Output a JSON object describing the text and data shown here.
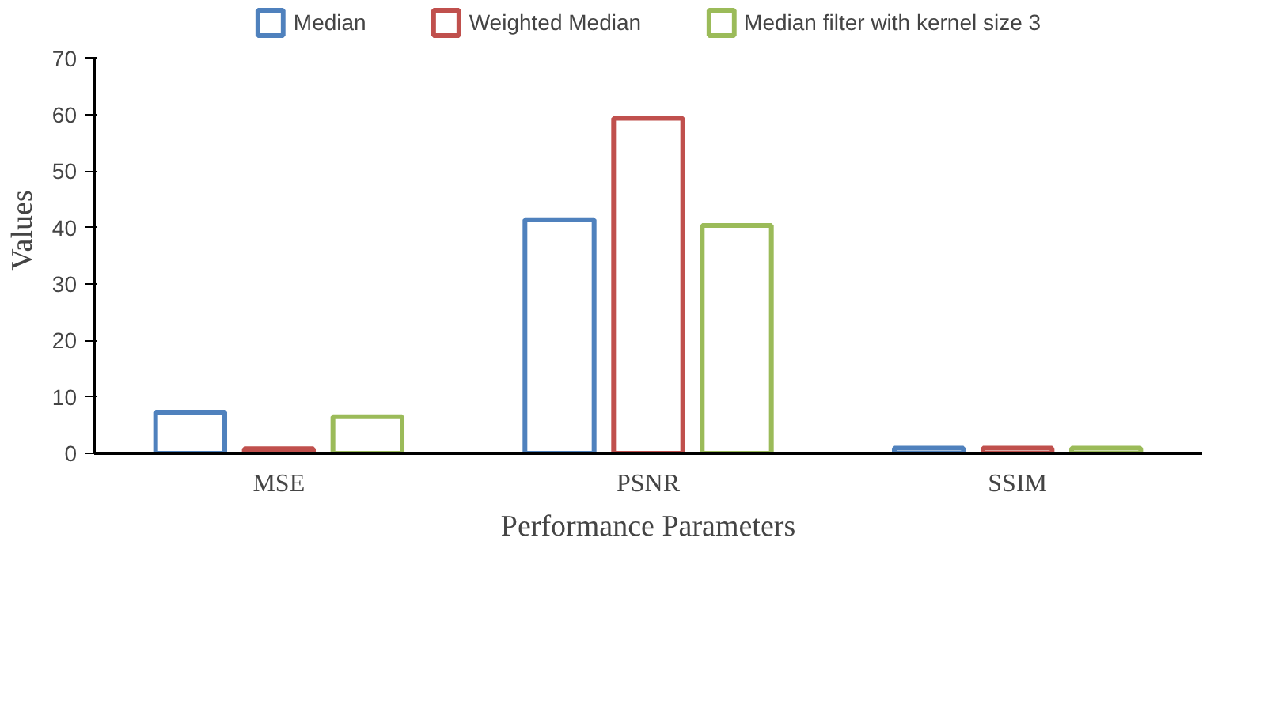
{
  "chart_data": {
    "type": "bar",
    "xlabel": "Performance Parameters",
    "ylabel": "Values",
    "categories": [
      "MSE",
      "PSNR",
      "SSIM"
    ],
    "series": [
      {
        "name": "Median",
        "color": "#4f81bd",
        "values": [
          7.3,
          41.4,
          0.9
        ]
      },
      {
        "name": "Weighted Median",
        "color": "#c0504d",
        "values": [
          0.8,
          59.4,
          0.9
        ]
      },
      {
        "name": "Median filter with kernel size 3",
        "color": "#9bbb59",
        "values": [
          6.5,
          40.4,
          0.9
        ]
      }
    ],
    "ylim": [
      0,
      70
    ],
    "yticks": [
      0,
      10,
      20,
      30,
      40,
      50,
      60,
      70
    ],
    "grid": false,
    "legend": "top"
  }
}
